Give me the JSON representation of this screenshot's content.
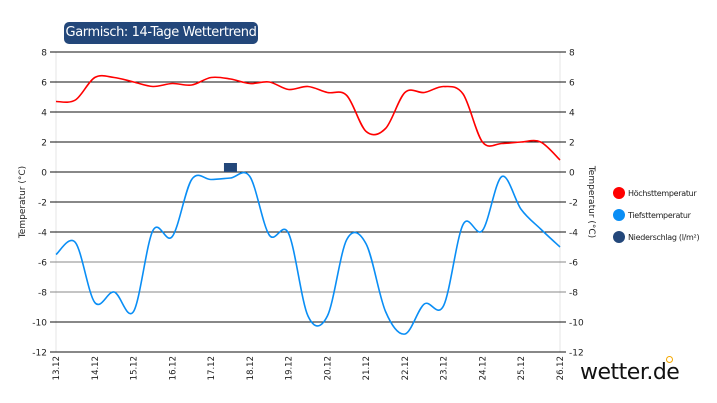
{
  "chart_data": {
    "type": "line",
    "title": "Garmisch: 14-Tage Wettertrend",
    "ylabel": "Temperatur (°C)",
    "ylabel_right": "Temperatur (°C)",
    "ylim": [
      -12,
      8
    ],
    "yticks": [
      8,
      6,
      4,
      2,
      0,
      -2,
      -4,
      -6,
      -8,
      -10,
      -12
    ],
    "xticks": [
      "13.12",
      "14.12",
      "15.12",
      "16.12",
      "17.12",
      "18.12",
      "19.12",
      "20.12",
      "21.12",
      "22.12",
      "23.12",
      "24.12",
      "25.12",
      "26.12"
    ],
    "grid": true,
    "legend_position": "right",
    "x": [
      "13.12 00:00",
      "13.12 12:00",
      "14.12 00:00",
      "14.12 12:00",
      "15.12 00:00",
      "15.12 12:00",
      "16.12 00:00",
      "16.12 12:00",
      "17.12 00:00",
      "17.12 12:00",
      "18.12 00:00",
      "18.12 12:00",
      "19.12 00:00",
      "19.12 12:00",
      "20.12 00:00",
      "20.12 12:00",
      "21.12 00:00",
      "21.12 12:00",
      "22.12 00:00",
      "22.12 12:00",
      "23.12 00:00",
      "23.12 12:00",
      "24.12 00:00",
      "24.12 12:00",
      "25.12 00:00",
      "25.12 12:00",
      "26.12 00:00"
    ],
    "series": [
      {
        "name": "Höchsttemperatur",
        "color": "#ff0000",
        "values": [
          4.7,
          4.8,
          6.3,
          6.3,
          6.0,
          5.7,
          5.9,
          5.8,
          6.3,
          6.2,
          5.9,
          6.0,
          5.5,
          5.7,
          5.3,
          5.1,
          2.7,
          2.9,
          5.3,
          5.3,
          5.7,
          5.2,
          2.0,
          1.9,
          2.0,
          2.0,
          0.8
        ]
      },
      {
        "name": "Tiefsttemperatur",
        "color": "#0a8ef5",
        "values": [
          -5.5,
          -4.7,
          -8.7,
          -8.0,
          -9.3,
          -3.9,
          -4.3,
          -0.5,
          -0.5,
          -0.4,
          -0.3,
          -4.2,
          -4.1,
          -9.6,
          -9.6,
          -4.5,
          -4.8,
          -9.3,
          -10.8,
          -8.8,
          -8.9,
          -3.5,
          -3.9,
          -0.3,
          -2.5,
          -3.8,
          -5.0
        ]
      }
    ],
    "bars": {
      "name": "Niederschlag (l/m²)",
      "color": "#23477a",
      "points": [
        {
          "x": "17.12 12:00",
          "value": 0.6
        }
      ]
    }
  },
  "brand": {
    "logo": "wetter.de",
    "accent": "#f5a800"
  }
}
